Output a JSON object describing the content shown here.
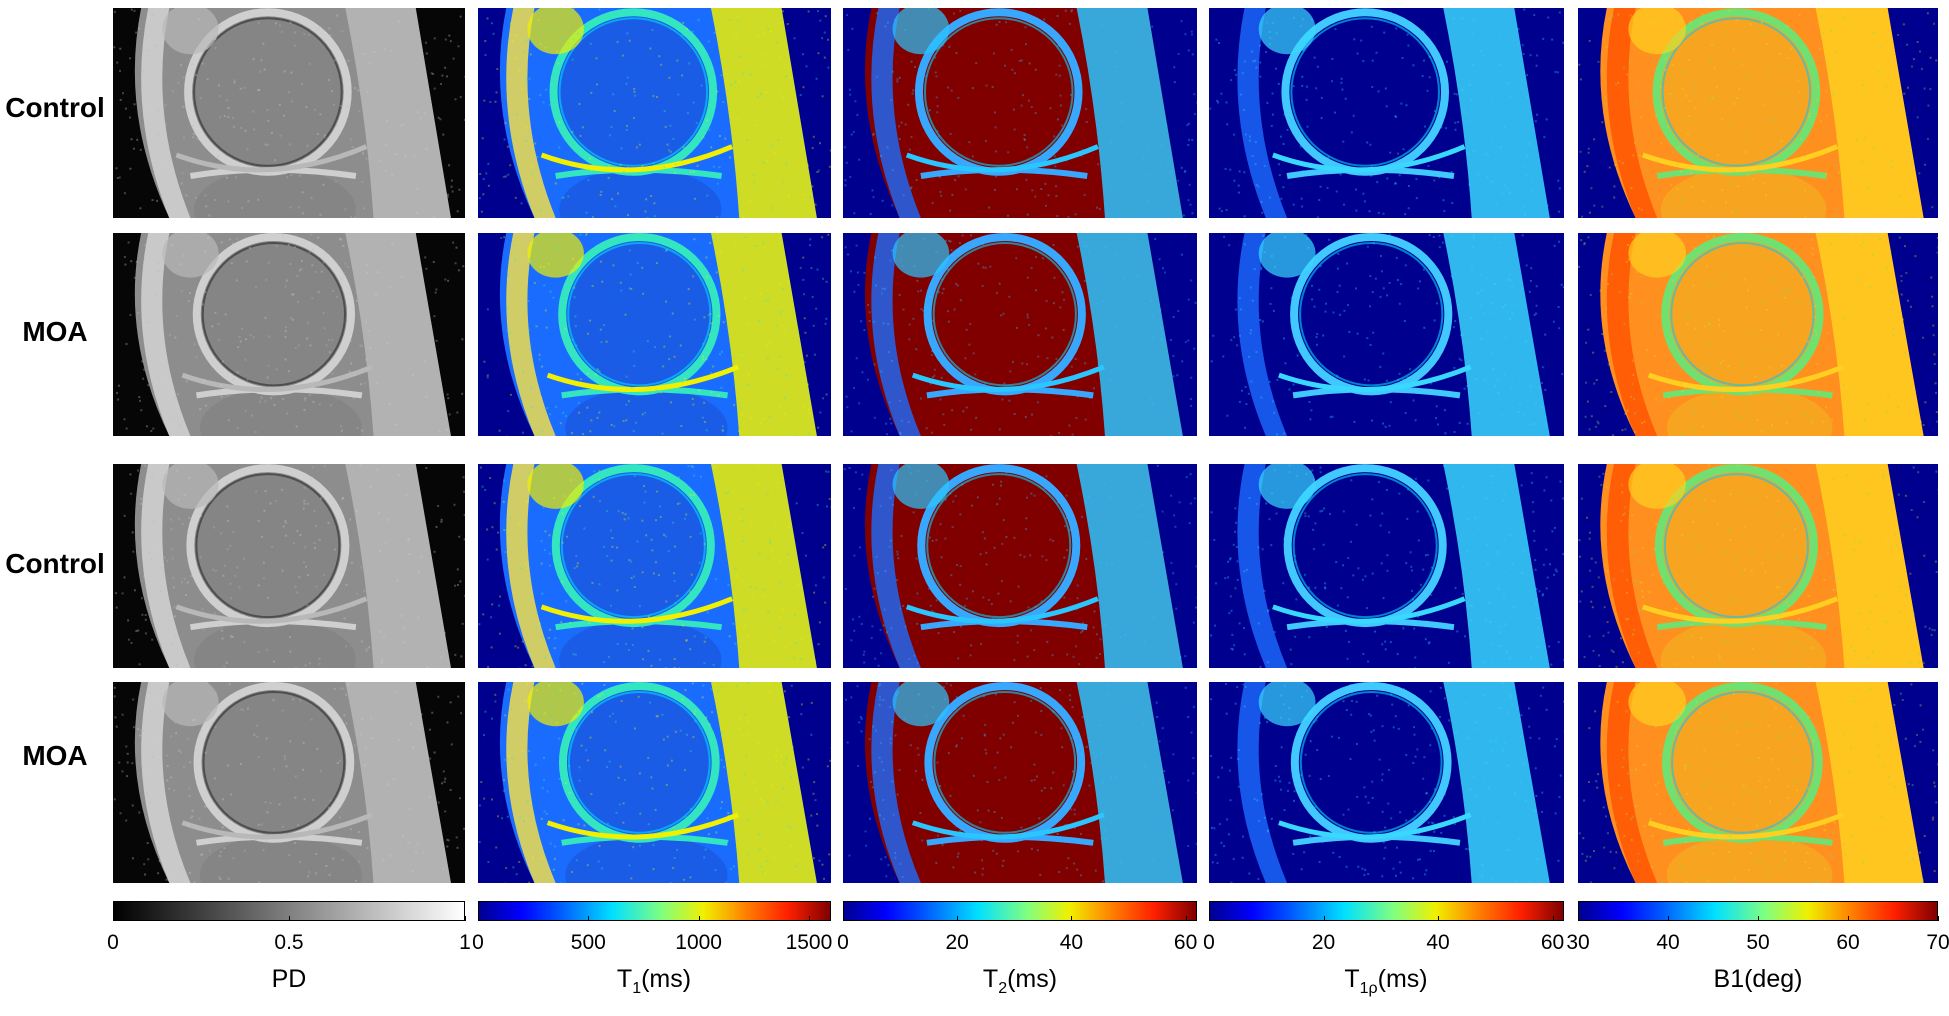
{
  "rows": [
    {
      "label": "Control"
    },
    {
      "label": "MOA"
    },
    {
      "label": "Control"
    },
    {
      "label": "MOA"
    }
  ],
  "maps": [
    {
      "name": "PD",
      "colormap": "gray",
      "ticks": [
        "0",
        "0.5",
        "1"
      ],
      "tick_values": [
        0,
        0.5,
        1
      ],
      "range": [
        0,
        1
      ]
    },
    {
      "name": "T1",
      "colormap": "jet",
      "ticks": [
        "0",
        "500",
        "1000",
        "1500"
      ],
      "tick_values": [
        0,
        500,
        1000,
        1500
      ],
      "range": [
        0,
        1600
      ]
    },
    {
      "name": "T2",
      "colormap": "jet",
      "ticks": [
        "0",
        "20",
        "40",
        "60"
      ],
      "tick_values": [
        0,
        20,
        40,
        60
      ],
      "range": [
        0,
        62
      ]
    },
    {
      "name": "T1rho",
      "colormap": "jet",
      "ticks": [
        "0",
        "20",
        "40",
        "60"
      ],
      "tick_values": [
        0,
        20,
        40,
        60
      ],
      "range": [
        0,
        62
      ]
    },
    {
      "name": "B1",
      "colormap": "jet",
      "ticks": [
        "30",
        "40",
        "50",
        "60",
        "70"
      ],
      "tick_values": [
        30,
        40,
        50,
        60,
        70
      ],
      "range": [
        30,
        70
      ]
    }
  ],
  "colorbar_labels": {
    "pd": "PD",
    "t1_main": "T",
    "t1_sub": "1",
    "t1_unit": "(ms)",
    "t2_main": "T",
    "t2_sub": "2",
    "t2_unit": "(ms)",
    "t1rho_main": "T",
    "t1rho_sub": "1ρ",
    "t1rho_unit": "(ms)",
    "b1": "B1(deg)"
  },
  "colors": {
    "jet_dark_blue": "#00008f",
    "jet_blue": "#0050ff",
    "jet_cyan": "#00e0ff",
    "jet_yellow": "#f0f000",
    "jet_red": "#ff2000",
    "jet_dark_red": "#800000"
  }
}
